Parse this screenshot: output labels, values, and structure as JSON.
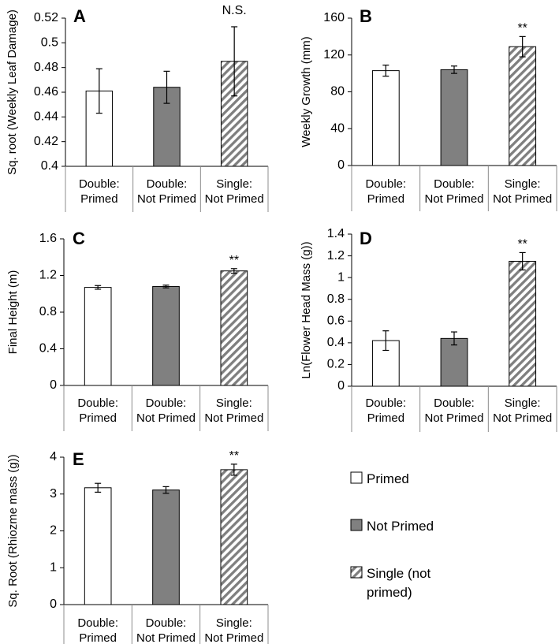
{
  "chart_data": [
    {
      "panel": "A",
      "type": "bar",
      "categories": [
        [
          "Double:",
          "Primed"
        ],
        [
          "Double:",
          "Not Primed"
        ],
        [
          "Single:",
          "Not Primed"
        ]
      ],
      "values": [
        0.461,
        0.464,
        0.485
      ],
      "errors": [
        0.018,
        0.013,
        0.028
      ],
      "ylabel": "Sq. root (Weekly Leaf Damage)",
      "ylim": [
        0.4,
        0.52
      ],
      "yticks": [
        0.4,
        0.42,
        0.44,
        0.46,
        0.48,
        0.5,
        0.52
      ],
      "ytick_labels": [
        "0.4",
        "0.42",
        "0.44",
        "0.46",
        "0.48",
        "0.5",
        "0.52"
      ],
      "significance": "N.S."
    },
    {
      "panel": "B",
      "type": "bar",
      "categories": [
        [
          "Double:",
          "Primed"
        ],
        [
          "Double:",
          "Not Primed"
        ],
        [
          "Single:",
          "Not Primed"
        ]
      ],
      "values": [
        103,
        104,
        129
      ],
      "errors": [
        6,
        4,
        11
      ],
      "ylabel": "Weekly Growth (mm)",
      "ylim": [
        0,
        160
      ],
      "yticks": [
        0,
        40,
        80,
        120,
        160
      ],
      "ytick_labels": [
        "0",
        "40",
        "80",
        "120",
        "160"
      ],
      "significance": "**"
    },
    {
      "panel": "C",
      "type": "bar",
      "categories": [
        [
          "Double:",
          "Primed"
        ],
        [
          "Double:",
          "Not Primed"
        ],
        [
          "Single:",
          "Not Primed"
        ]
      ],
      "values": [
        1.07,
        1.08,
        1.25
      ],
      "errors": [
        0.02,
        0.015,
        0.025
      ],
      "ylabel": "Final Height (m)",
      "ylim": [
        0,
        1.6
      ],
      "yticks": [
        0,
        0.4,
        0.8,
        1.2,
        1.6
      ],
      "ytick_labels": [
        "0",
        "0.4",
        "0.8",
        "1.2",
        "1.6"
      ],
      "significance": "**"
    },
    {
      "panel": "D",
      "type": "bar",
      "categories": [
        [
          "Double:",
          "Primed"
        ],
        [
          "Double:",
          "Not Primed"
        ],
        [
          "Single:",
          "Not Primed"
        ]
      ],
      "values": [
        0.42,
        0.44,
        1.15
      ],
      "errors": [
        0.09,
        0.06,
        0.08
      ],
      "ylabel": "Ln(Flower Head Mass (g))",
      "ylim": [
        0,
        1.4
      ],
      "yticks": [
        0,
        0.2,
        0.4,
        0.6,
        0.8,
        1,
        1.2,
        1.4
      ],
      "ytick_labels": [
        "0",
        "0.2",
        "0.4",
        "0.6",
        "0.8",
        "1",
        "1.2",
        "1.4"
      ],
      "significance": "**"
    },
    {
      "panel": "E",
      "type": "bar",
      "categories": [
        [
          "Double:",
          "Primed"
        ],
        [
          "Double:",
          "Not Primed"
        ],
        [
          "Single:",
          "Not Primed"
        ]
      ],
      "values": [
        3.17,
        3.11,
        3.66
      ],
      "errors": [
        0.12,
        0.09,
        0.15
      ],
      "ylabel": "Sq. Root (Rhiozme mass (g))",
      "ylim": [
        0,
        4
      ],
      "yticks": [
        0,
        1,
        2,
        3,
        4
      ],
      "ytick_labels": [
        "0",
        "1",
        "2",
        "3",
        "4"
      ],
      "significance": "**"
    }
  ],
  "legend": {
    "entries": [
      {
        "lines": [
          "Primed"
        ],
        "style": "white"
      },
      {
        "lines": [
          "Not Primed"
        ],
        "style": "gray"
      },
      {
        "lines": [
          "Single (not",
          "primed)"
        ],
        "style": "hatched"
      }
    ]
  },
  "colors": {
    "primed": "#ffffff",
    "not_primed": "#808080",
    "hatch": "#7f7f7f",
    "axis": "#000000",
    "separator": "#8c8c8c"
  }
}
